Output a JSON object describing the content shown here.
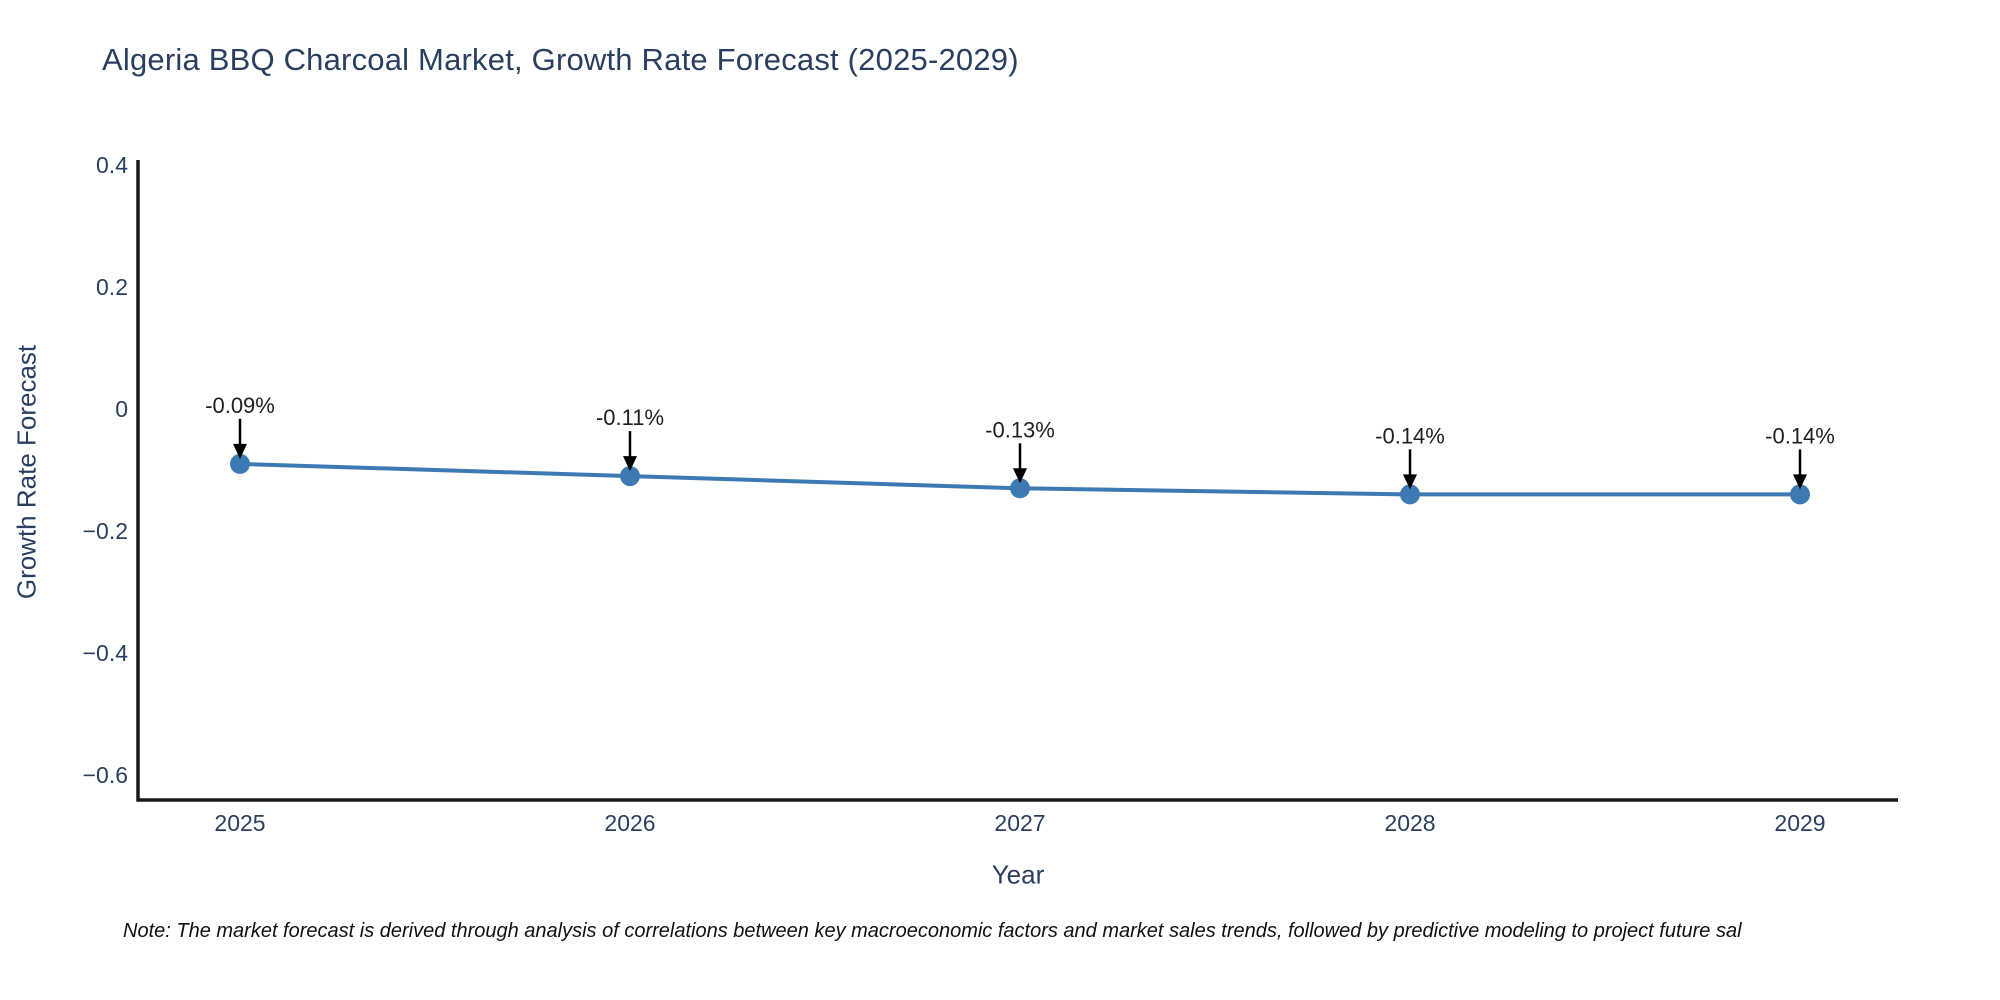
{
  "note": "Note: The market forecast is derived through analysis of correlations between key macroeconomic factors and market sales trends, followed by predictive modeling to project future sal",
  "chart_data": {
    "type": "line",
    "title": "Algeria BBQ Charcoal Market, Growth Rate Forecast (2025-2029)",
    "xlabel": "Year",
    "ylabel": "Growth Rate Forecast",
    "categories": [
      "2025",
      "2026",
      "2027",
      "2028",
      "2029"
    ],
    "values": [
      -0.09,
      -0.11,
      -0.13,
      -0.14,
      -0.14
    ],
    "point_labels": [
      "-0.09%",
      "-0.11%",
      "-0.13%",
      "-0.14%",
      "-0.14%"
    ],
    "yticks": [
      {
        "v": 0.4,
        "label": "0.4"
      },
      {
        "v": 0.2,
        "label": "0.2"
      },
      {
        "v": 0,
        "label": "0"
      },
      {
        "v": -0.2,
        "label": "−0.2"
      },
      {
        "v": -0.4,
        "label": "−0.4"
      },
      {
        "v": -0.6,
        "label": "−0.6"
      }
    ],
    "ylim": [
      -0.64,
      0.41
    ],
    "grid": false,
    "legend": false,
    "colors": {
      "line": "#3d79b2",
      "marker": "#3d79b2",
      "axis": "#1a1a1a",
      "tick_text": "#2a3f5f",
      "annotation_text": "#1f1f1f",
      "annotation_arrow": "#000000",
      "title_text": "#2a3f5f"
    }
  }
}
